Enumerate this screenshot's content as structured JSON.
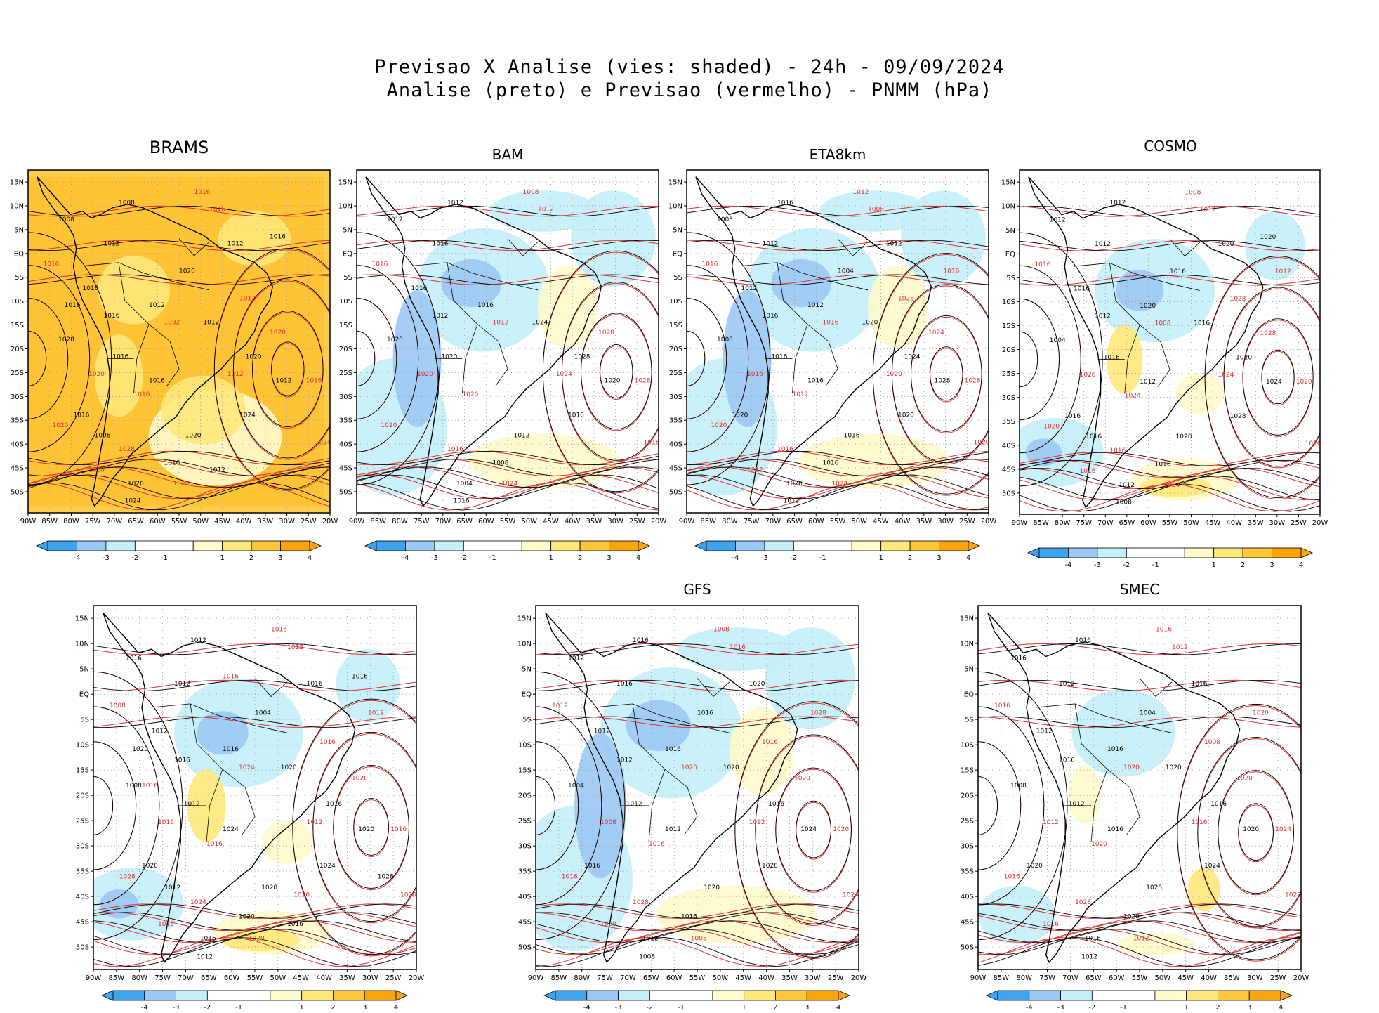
{
  "title": {
    "line1": "Previsao X Analise (vies: shaded) - 24h - 09/09/2024",
    "line2": "Analise (preto) e Previsao (vermelho) - PNMM (hPa)"
  },
  "colors": {
    "neg4": "#3fa4f0",
    "neg3": "#9cc9f4",
    "neg2": "#c4f0fa",
    "neg1": "#ffffff",
    "pos1": "#fffbcc",
    "pos2": "#ffe87a",
    "pos3": "#ffc83a",
    "pos4": "#fca40c",
    "analysis_contour": "#000000",
    "forecast_contour": "#e03030",
    "grid": "#9a9a9a"
  },
  "lat_ticks": [
    "15N",
    "10N",
    "5N",
    "EQ",
    "5S",
    "10S",
    "15S",
    "20S",
    "25S",
    "30S",
    "35S",
    "40S",
    "45S",
    "50S"
  ],
  "lon_ticks": [
    "90W",
    "85W",
    "80W",
    "75W",
    "70W",
    "65W",
    "60W",
    "55W",
    "50W",
    "45W",
    "40W",
    "35W",
    "30W",
    "25W",
    "20W"
  ],
  "colorbar_labels": [
    "-4",
    "-3",
    "-2",
    "-1",
    "1",
    "2",
    "3",
    "4"
  ],
  "panels": [
    {
      "id": "brams",
      "name": "BRAMS",
      "dominant": "pos",
      "contour_labels_black": [
        "1008",
        "1012",
        "1008",
        "1016",
        "1016",
        "1012",
        "1016",
        "1012",
        "1020",
        "1012",
        "1024",
        "1020",
        "1016",
        "1020",
        "1024",
        "1028",
        "1020",
        "1012",
        "1016",
        "1016",
        "1016",
        "1008",
        "1012",
        "1016"
      ],
      "contour_labels_red": [
        "1016",
        "1016",
        "1016",
        "1020",
        "1016",
        "1012",
        "1020",
        "1016",
        "1024",
        "1028",
        "1032",
        "1020",
        "1020",
        "1012",
        "1020"
      ]
    },
    {
      "id": "bam",
      "name": "BAM",
      "dominant": "neg",
      "contour_labels_black": [
        "1012",
        "1016",
        "1012",
        "1016",
        "1012",
        "1016",
        "1020",
        "1024",
        "1028",
        "1020",
        "1016",
        "1012",
        "1008",
        "1004",
        "1016",
        "1020"
      ],
      "contour_labels_red": [
        "1008",
        "1012",
        "1016",
        "1020",
        "1020",
        "1024",
        "1028",
        "1028",
        "1016",
        "1016",
        "1012",
        "1020",
        "1024"
      ]
    },
    {
      "id": "eta8km",
      "name": "ETA8km",
      "dominant": "neg",
      "contour_labels_black": [
        "1008",
        "1012",
        "1016",
        "1012",
        "1016",
        "1012",
        "1016",
        "1020",
        "1024",
        "1028",
        "1020",
        "1016",
        "1016",
        "1020",
        "1012",
        "1008",
        "1004",
        "1012",
        "1020",
        "1016"
      ],
      "contour_labels_red": [
        "1012",
        "1008",
        "1016",
        "1016",
        "1012",
        "1020",
        "1024",
        "1028",
        "1020",
        "1016",
        "1016",
        "1020",
        "1024",
        "1028",
        "1012",
        "1016"
      ]
    },
    {
      "id": "cosmo",
      "name": "COSMO",
      "dominant": "mixed",
      "contour_labels_black": [
        "1012",
        "1012",
        "1012",
        "1016",
        "1012",
        "1020",
        "1016",
        "1016",
        "1020",
        "1024",
        "1028",
        "1020",
        "1016",
        "1012",
        "1008",
        "1004",
        "1016",
        "1020",
        "1016",
        "1012",
        "1020",
        "1016"
      ],
      "contour_labels_red": [
        "1008",
        "1012",
        "1016",
        "1020",
        "1024",
        "1024",
        "1028",
        "1020",
        "1016",
        "1016",
        "1008",
        "1020",
        "1024",
        "1028",
        "1016",
        "1012"
      ]
    },
    {
      "id": "p5",
      "name": "",
      "dominant": "mixed",
      "contour_labels_black": [
        "1016",
        "1012",
        "1012",
        "1012",
        "1016",
        "1016",
        "1012",
        "1020",
        "1016",
        "1020",
        "1024",
        "1028",
        "1020",
        "1016",
        "1012",
        "1008",
        "1004",
        "1016",
        "1020",
        "1024",
        "1016",
        "1012",
        "1016",
        "1020",
        "1028"
      ],
      "contour_labels_red": [
        "1016",
        "1012",
        "1008",
        "1016",
        "1016",
        "1012",
        "1020",
        "1016",
        "1020",
        "1024",
        "1024",
        "1028",
        "1020",
        "1016",
        "1016",
        "1012",
        "1016",
        "1020",
        "1016"
      ]
    },
    {
      "id": "gfs",
      "name": "GFS",
      "dominant": "neg",
      "contour_labels_black": [
        "1012",
        "1016",
        "1016",
        "1012",
        "1012",
        "1016",
        "1012",
        "1020",
        "1016",
        "1024",
        "1028",
        "1020",
        "1016",
        "1012",
        "1008",
        "1004",
        "1016",
        "1020",
        "1016",
        "1012"
      ],
      "contour_labels_red": [
        "1008",
        "1016",
        "1012",
        "1008",
        "1016",
        "1012",
        "1020",
        "1020",
        "1024",
        "1028",
        "1020",
        "1016",
        "1008",
        "1016",
        "1020",
        "1028"
      ]
    },
    {
      "id": "smec",
      "name": "SMEC",
      "dominant": "light",
      "contour_labels_black": [
        "1016",
        "1012",
        "1016",
        "1012",
        "1016",
        "1016",
        "1012",
        "1020",
        "1016",
        "1020",
        "1024",
        "1028",
        "1020",
        "1016",
        "1012",
        "1008",
        "1004",
        "1016",
        "1020",
        "1016"
      ],
      "contour_labels_red": [
        "1016",
        "1012",
        "1016",
        "1012",
        "1020",
        "1016",
        "1020",
        "1024",
        "1028",
        "1028",
        "1020",
        "1016",
        "1012",
        "1008",
        "1016",
        "1020"
      ]
    }
  ]
}
